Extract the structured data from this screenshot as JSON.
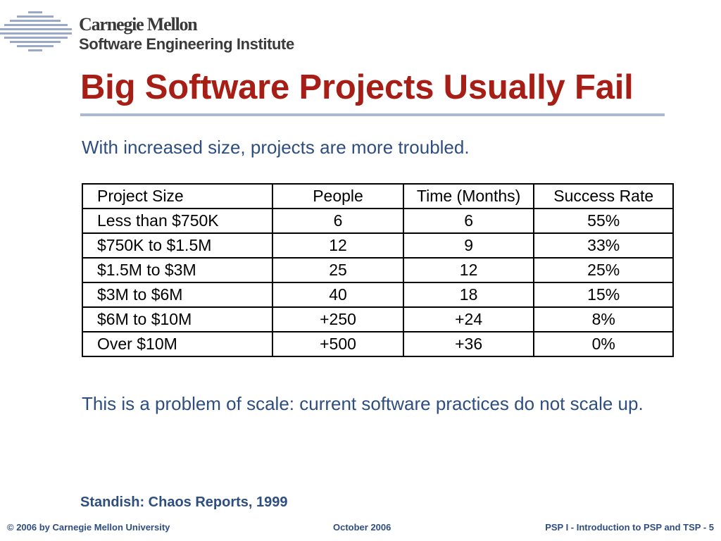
{
  "header": {
    "org_line1": "Carnegie Mellon",
    "org_line2": "Software Engineering Institute"
  },
  "slide": {
    "title": "Big Software Projects Usually Fail",
    "subtitle": "With increased size, projects are more troubled.",
    "note": "This is a problem of scale: current software practices do not scale up.",
    "source": "Standish: Chaos Reports, 1999"
  },
  "table": {
    "headers": [
      "Project Size",
      "People",
      "Time (Months)",
      "Success Rate"
    ],
    "rows": [
      [
        "Less than $750K",
        "6",
        "6",
        "55%"
      ],
      [
        "$750K to $1.5M",
        "12",
        "9",
        "33%"
      ],
      [
        "$1.5M to $3M",
        "25",
        "12",
        "25%"
      ],
      [
        "$3M to $6M",
        "40",
        "18",
        "15%"
      ],
      [
        "$6M to $10M",
        "+250",
        "+24",
        "8%"
      ],
      [
        "Over $10M",
        "+500",
        "+36",
        "0%"
      ]
    ]
  },
  "footer": {
    "copyright": "© 2006 by Carnegie Mellon University",
    "date": "October 2006",
    "course": "PSP I - Introduction to PSP and TSP - 5"
  },
  "colors": {
    "title": "#a61e16",
    "accent_text": "#2e4e80",
    "rule": "#a9b9d4",
    "logo_lines": "#9aa9c5"
  },
  "icons": {
    "logo": "sei-horizontal-lines-logo"
  }
}
